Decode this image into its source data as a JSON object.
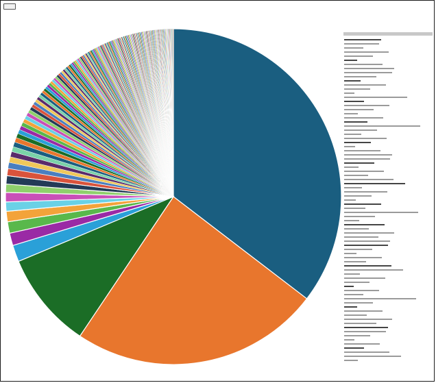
{
  "window": {
    "corner_button_label": "",
    "title": ""
  },
  "chart_data": {
    "type": "pie",
    "title": "",
    "legend_position": "right",
    "major_colors": [
      "#1a5e80",
      "#e8762d",
      "#1b6d26",
      "#2aa0d8",
      "#9a2aa5",
      "#59b84b"
    ],
    "slices": [
      {
        "label": "",
        "value": 35.4
      },
      {
        "label": "",
        "value": 24.0
      },
      {
        "label": "",
        "value": 9.3
      },
      {
        "label": "",
        "value": 1.6
      },
      {
        "label": "",
        "value": 1.2
      },
      {
        "label": "",
        "value": 1.1
      },
      {
        "label": "",
        "value": 1.0
      },
      {
        "label": "",
        "value": 0.9
      },
      {
        "label": "",
        "value": 0.9
      },
      {
        "label": "",
        "value": 0.8
      },
      {
        "label": "",
        "value": 0.8
      },
      {
        "label": "",
        "value": 0.7
      }
    ],
    "small_slice_count": 150,
    "small_slices_total": 22.3,
    "small_slice_palette": [
      "#1a5e80",
      "#e8762d",
      "#1b6d26",
      "#2aa0d8",
      "#9a2aa5",
      "#59b84b",
      "#f3a33a",
      "#6ad1e6",
      "#c94fb8",
      "#8fd06c",
      "#233b57",
      "#d9533c",
      "#4a7fbf",
      "#f0c85a",
      "#5a2b6b",
      "#7ad3a8"
    ],
    "legend_entry_count": 80
  }
}
